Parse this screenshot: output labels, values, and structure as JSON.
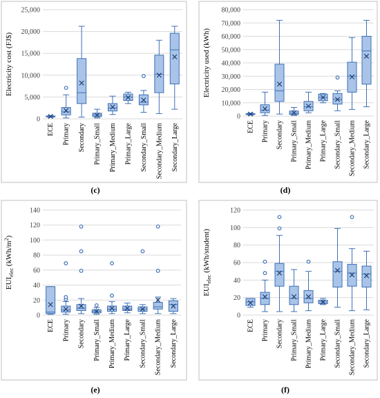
{
  "chart_data": [
    {
      "type": "box",
      "panel_label": "(c)",
      "ylabel": "Electricity cost (FJ$)",
      "ylim": [
        0,
        25000
      ],
      "yticks": [
        0,
        5000,
        10000,
        15000,
        20000,
        25000
      ],
      "ytick_labels": [
        "0",
        "5,000",
        "10,000",
        "15,000",
        "20,000",
        "25,000"
      ],
      "categories": [
        "ECE",
        "Primary",
        "Secondary",
        "Primary_Small",
        "Primary_Medium",
        "Primary_Large",
        "Secondary_Small",
        "Secondary_Medium",
        "Secondary_Large"
      ],
      "boxes": [
        {
          "min": 350,
          "q1": 450,
          "median": 550,
          "q3": 650,
          "max": 750,
          "mean": 550,
          "outliers": []
        },
        {
          "min": 200,
          "q1": 900,
          "median": 1600,
          "q3": 2600,
          "max": 5500,
          "mean": 1900,
          "outliers": [
            7100
          ]
        },
        {
          "min": 400,
          "q1": 3500,
          "median": 6000,
          "q3": 13800,
          "max": 21200,
          "mean": 8200,
          "outliers": []
        },
        {
          "min": 200,
          "q1": 500,
          "median": 900,
          "q3": 1300,
          "max": 2200,
          "mean": 850,
          "outliers": []
        },
        {
          "min": 1000,
          "q1": 1800,
          "median": 2500,
          "q3": 3500,
          "max": 5200,
          "mean": 2700,
          "outliers": []
        },
        {
          "min": 3500,
          "q1": 4200,
          "median": 5000,
          "q3": 5700,
          "max": 6100,
          "mean": 4900,
          "outliers": []
        },
        {
          "min": 1500,
          "q1": 3200,
          "median": 3800,
          "q3": 5500,
          "max": 6500,
          "mean": 4300,
          "outliers": [
            9800
          ]
        },
        {
          "min": 1200,
          "q1": 6000,
          "median": 10200,
          "q3": 14600,
          "max": 18000,
          "mean": 10000,
          "outliers": []
        },
        {
          "min": 2200,
          "q1": 8000,
          "median": 15800,
          "q3": 19600,
          "max": 21200,
          "mean": 14200,
          "outliers": []
        }
      ]
    },
    {
      "type": "box",
      "panel_label": "(d)",
      "ylabel": "Electricity used (kWh)",
      "ylim": [
        0,
        80000
      ],
      "yticks": [
        0,
        10000,
        20000,
        30000,
        40000,
        50000,
        60000,
        70000,
        80000
      ],
      "ytick_labels": [
        "0",
        "10,000",
        "20,000",
        "30,000",
        "40,000",
        "50,000",
        "60,000",
        "70,000",
        "80,000"
      ],
      "categories": [
        "ECE",
        "Primary",
        "Secondary",
        "Primary_Small",
        "Primary_Medium",
        "Primary_Large",
        "Secondary_Small",
        "Secondary_Medium",
        "Secondary_Large"
      ],
      "boxes": [
        {
          "min": 800,
          "q1": 1200,
          "median": 1500,
          "q3": 1800,
          "max": 2200,
          "mean": 1500,
          "outliers": []
        },
        {
          "min": 500,
          "q1": 2500,
          "median": 4500,
          "q3": 8500,
          "max": 18000,
          "mean": 5500,
          "outliers": []
        },
        {
          "min": 1500,
          "q1": 11000,
          "median": 19000,
          "q3": 39000,
          "max": 72000,
          "mean": 24000,
          "outliers": []
        },
        {
          "min": 500,
          "q1": 1200,
          "median": 2200,
          "q3": 3800,
          "max": 6500,
          "mean": 2500,
          "outliers": []
        },
        {
          "min": 2500,
          "q1": 4000,
          "median": 7000,
          "q3": 11000,
          "max": 18000,
          "mean": 7500,
          "outliers": []
        },
        {
          "min": 10000,
          "q1": 11500,
          "median": 14000,
          "q3": 16500,
          "max": 17000,
          "mean": 14000,
          "outliers": []
        },
        {
          "min": 4000,
          "q1": 9000,
          "median": 12500,
          "q3": 17000,
          "max": 19000,
          "mean": 12500,
          "outliers": [
            29000
          ]
        },
        {
          "min": 5000,
          "q1": 18000,
          "median": 30000,
          "q3": 40500,
          "max": 59000,
          "mean": 29500,
          "outliers": []
        },
        {
          "min": 7000,
          "q1": 24000,
          "median": 49000,
          "q3": 60000,
          "max": 72000,
          "mean": 45000,
          "outliers": []
        }
      ]
    },
    {
      "type": "box",
      "panel_label": "(e)",
      "ylabel": "EUI",
      "ylabel_sub": "elec",
      "ylabel_unit": " (kWh/m",
      "ylabel_sup": "2",
      "ylabel_end": ")",
      "ylim": [
        0,
        140
      ],
      "yticks": [
        0,
        20,
        40,
        60,
        80,
        100,
        120,
        140
      ],
      "ytick_labels": [
        "0",
        "20",
        "40",
        "60",
        "80",
        "100",
        "120",
        "140"
      ],
      "categories": [
        "ECE",
        "Primary",
        "Secondary",
        "Primary_Small",
        "Primary_Medium",
        "Primary_Large",
        "Secondary_Small",
        "Secondary_Medium",
        "Secondary_Large"
      ],
      "boxes": [
        {
          "min": 1,
          "q1": 2,
          "median": 4,
          "q3": 38,
          "max": 38,
          "mean": 14,
          "outliers": []
        },
        {
          "min": 1,
          "q1": 4,
          "median": 7,
          "q3": 12,
          "max": 18,
          "mean": 8,
          "outliers": [
            21,
            24,
            69
          ]
        },
        {
          "min": 2,
          "q1": 6,
          "median": 9,
          "q3": 14,
          "max": 22,
          "mean": 12,
          "outliers": [
            59,
            85,
            118
          ]
        },
        {
          "min": 1,
          "q1": 3,
          "median": 5,
          "q3": 7,
          "max": 10,
          "mean": 5,
          "outliers": [
            13
          ]
        },
        {
          "min": 2,
          "q1": 5,
          "median": 8,
          "q3": 12,
          "max": 18,
          "mean": 9,
          "outliers": [
            26,
            69
          ]
        },
        {
          "min": 3,
          "q1": 6,
          "median": 8,
          "q3": 12,
          "max": 16,
          "mean": 9,
          "outliers": []
        },
        {
          "min": 2,
          "q1": 5,
          "median": 8,
          "q3": 11,
          "max": 14,
          "mean": 8,
          "outliers": [
            85
          ]
        },
        {
          "min": 2,
          "q1": 8,
          "median": 11,
          "q3": 17,
          "max": 24,
          "mean": 20,
          "outliers": [
            59,
            118
          ]
        },
        {
          "min": 2,
          "q1": 5,
          "median": 14,
          "q3": 19,
          "max": 22,
          "mean": 12,
          "outliers": []
        }
      ]
    },
    {
      "type": "box",
      "panel_label": "(f)",
      "ylabel": "EUI",
      "ylabel_sub": "elec",
      "ylabel_unit": " (kWh/student)",
      "ylabel_sup": "",
      "ylabel_end": "",
      "ylim": [
        0,
        120
      ],
      "yticks": [
        0,
        20,
        40,
        60,
        80,
        100,
        120
      ],
      "ytick_labels": [
        "0",
        "20",
        "40",
        "60",
        "80",
        "100",
        "120"
      ],
      "categories": [
        "ECE",
        "Primary",
        "Secondary",
        "Primary_Small",
        "Primary_Medium",
        "Primary_Large",
        "Secondary_Small",
        "Secondary_Medium",
        "Secondary_Large"
      ],
      "boxes": [
        {
          "min": 9,
          "q1": 11,
          "median": 15,
          "q3": 19,
          "max": 19,
          "mean": 14,
          "outliers": []
        },
        {
          "min": 4,
          "q1": 12,
          "median": 19,
          "q3": 26,
          "max": 40,
          "mean": 21,
          "outliers": [
            48,
            61
          ]
        },
        {
          "min": 4,
          "q1": 33,
          "median": 50,
          "q3": 59,
          "max": 91,
          "mean": 48,
          "outliers": [
            99,
            112
          ]
        },
        {
          "min": 4,
          "q1": 12,
          "median": 19,
          "q3": 33,
          "max": 52,
          "mean": 21,
          "outliers": []
        },
        {
          "min": 5,
          "q1": 14,
          "median": 19,
          "q3": 28,
          "max": 50,
          "mean": 21,
          "outliers": [
            61
          ]
        },
        {
          "min": 12,
          "q1": 13,
          "median": 15,
          "q3": 17,
          "max": 19,
          "mean": 15,
          "outliers": []
        },
        {
          "min": 9,
          "q1": 32,
          "median": 50,
          "q3": 61,
          "max": 99,
          "mean": 51,
          "outliers": []
        },
        {
          "min": 5,
          "q1": 33,
          "median": 48,
          "q3": 58,
          "max": 76,
          "mean": 46,
          "outliers": [
            112
          ]
        },
        {
          "min": 6,
          "q1": 32,
          "median": 47,
          "q3": 56,
          "max": 73,
          "mean": 45,
          "outliers": []
        }
      ]
    }
  ],
  "colors": {
    "box_fill": "#a9c4e8",
    "box_stroke": "#3d6fb5",
    "outlier_stroke": "#3d6fb5",
    "grid": "#d9d9d9",
    "frame": "#bfbfbf",
    "axis_text": "#404040"
  }
}
